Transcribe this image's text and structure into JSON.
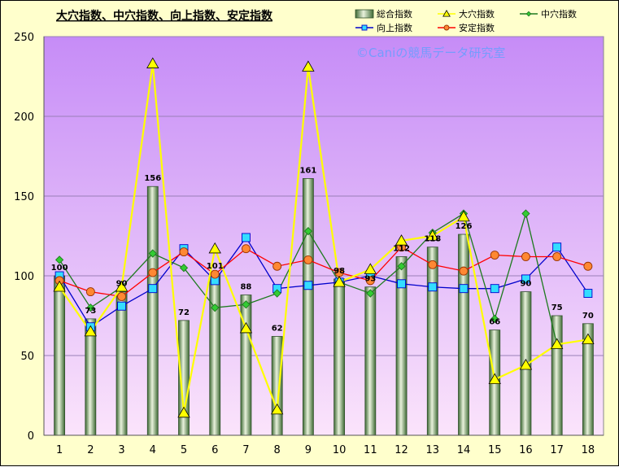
{
  "chart_data": {
    "type": "bar",
    "title": "大穴指数、中穴指数、向上指数、安定指数",
    "watermark": "©Caniの競馬データ研究室",
    "xlabel": "",
    "ylabel": "",
    "categories": [
      "1",
      "2",
      "3",
      "4",
      "5",
      "6",
      "7",
      "8",
      "9",
      "10",
      "11",
      "12",
      "13",
      "14",
      "15",
      "16",
      "17",
      "18"
    ],
    "ylim": [
      0,
      250
    ],
    "yticks": [
      "0",
      "50",
      "100",
      "150",
      "200",
      "250"
    ],
    "grid": "horizontal",
    "legend_position": "top-right",
    "series": [
      {
        "name": "総合指数",
        "kind": "bar",
        "color": "#5f8a4f",
        "values": [
          100,
          73,
          90,
          156,
          72,
          101,
          88,
          62,
          161,
          98,
          93,
          112,
          118,
          126,
          66,
          90,
          75,
          70
        ],
        "labels": [
          "100",
          "73",
          "90",
          "156",
          "72",
          "101",
          "88",
          "62",
          "161",
          "98",
          "93",
          "112",
          "118",
          "126",
          "66",
          "90",
          "75",
          "70"
        ]
      },
      {
        "name": "大穴指数",
        "kind": "line",
        "color": "#ffff00",
        "marker": "triangle",
        "values": [
          93,
          65,
          93,
          233,
          14,
          117,
          67,
          16,
          231,
          96,
          104,
          122,
          125,
          137,
          35,
          44,
          57,
          60
        ]
      },
      {
        "name": "中穴指数",
        "kind": "line",
        "color": "#1e7a1e",
        "marker": "diamond",
        "values": [
          110,
          80,
          93,
          114,
          105,
          80,
          82,
          89,
          128,
          96,
          89,
          106,
          127,
          139,
          73,
          139,
          57,
          60
        ]
      },
      {
        "name": "向上指数",
        "kind": "line",
        "color": "#0000cc",
        "marker": "square",
        "values": [
          100,
          68,
          81,
          92,
          117,
          97,
          124,
          92,
          94,
          96,
          100,
          95,
          93,
          92,
          92,
          98,
          118,
          89
        ]
      },
      {
        "name": "安定指数",
        "kind": "line",
        "color": "#ff0000",
        "marker": "circle",
        "values": [
          97,
          90,
          87,
          102,
          115,
          101,
          117,
          106,
          110,
          102,
          97,
          118,
          107,
          103,
          113,
          112,
          112,
          106
        ]
      }
    ]
  }
}
